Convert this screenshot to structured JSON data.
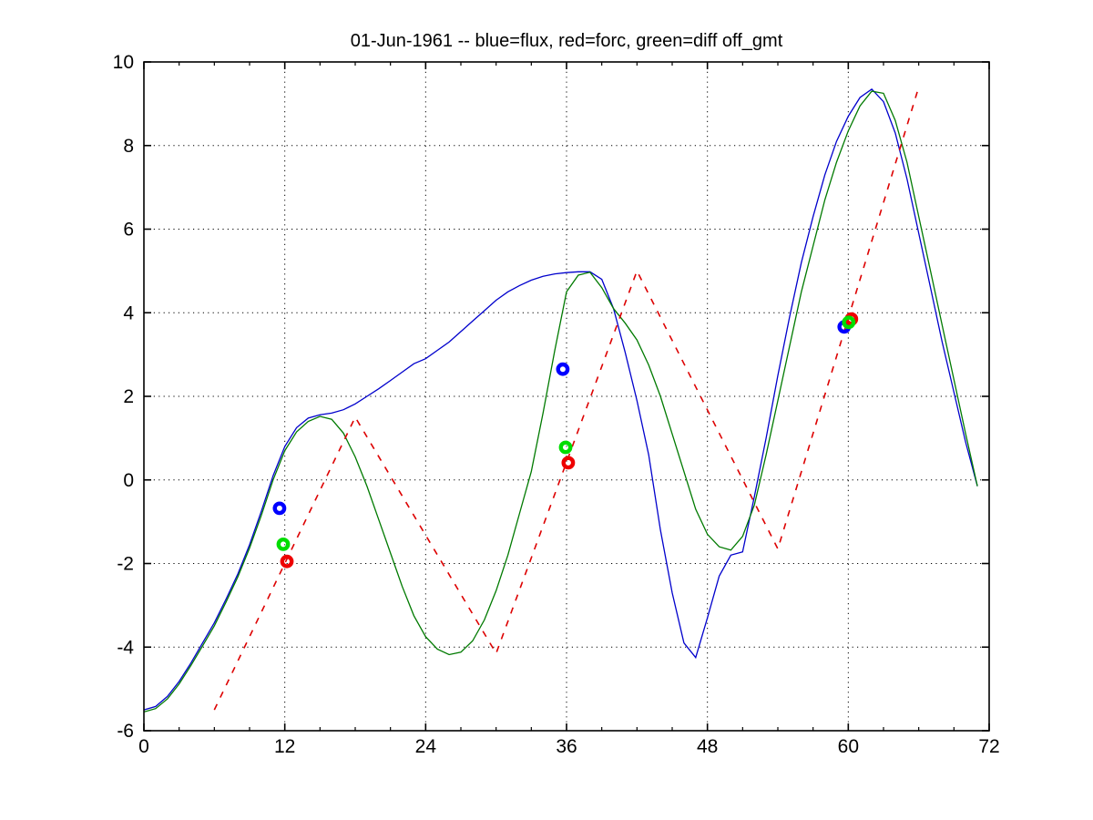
{
  "chart_data": {
    "type": "line",
    "title": "01-Jun-1961 -- blue=flux, red=forc, green=diff off_gmt",
    "xlabel": "",
    "ylabel": "",
    "xlim": [
      0,
      72
    ],
    "ylim": [
      -6,
      10
    ],
    "xticks": [
      0,
      12,
      24,
      36,
      48,
      60,
      72
    ],
    "yticks": [
      -6,
      -4,
      -2,
      0,
      2,
      4,
      6,
      8,
      10
    ],
    "x_minor_step": 3,
    "grid": "dotted",
    "background": "#ffffff",
    "axis_color": "#000000",
    "series": [
      {
        "name": "flux",
        "color": "#0000cc",
        "style": "solid",
        "x_start": 0,
        "x_step": 1,
        "y": [
          -5.5,
          -5.42,
          -5.18,
          -4.82,
          -4.38,
          -3.9,
          -3.42,
          -2.85,
          -2.25,
          -1.55,
          -0.75,
          0.1,
          0.8,
          1.25,
          1.48,
          1.56,
          1.6,
          1.68,
          1.82,
          2.0,
          2.18,
          2.38,
          2.58,
          2.78,
          2.9,
          3.1,
          3.3,
          3.55,
          3.8,
          4.05,
          4.3,
          4.5,
          4.65,
          4.78,
          4.87,
          4.93,
          4.96,
          4.98,
          4.98,
          4.8,
          4.1,
          3.05,
          1.9,
          0.6,
          -1.2,
          -2.7,
          -3.9,
          -4.25,
          -3.3,
          -2.3,
          -1.8,
          -1.72,
          -0.4,
          1.0,
          2.5,
          3.9,
          5.2,
          6.3,
          7.3,
          8.1,
          8.7,
          9.15,
          9.35,
          9.05,
          8.3,
          7.2,
          5.9,
          4.6,
          3.3,
          2.1,
          0.9,
          -0.15
        ]
      },
      {
        "name": "diff",
        "color": "#007a00",
        "style": "solid",
        "x_start": 0,
        "x_step": 1,
        "y": [
          -5.55,
          -5.47,
          -5.24,
          -4.88,
          -4.44,
          -3.97,
          -3.49,
          -2.92,
          -2.32,
          -1.63,
          -0.85,
          0.0,
          0.7,
          1.15,
          1.4,
          1.52,
          1.45,
          1.12,
          0.55,
          -0.15,
          -0.95,
          -1.75,
          -2.55,
          -3.25,
          -3.75,
          -4.05,
          -4.18,
          -4.12,
          -3.85,
          -3.35,
          -2.65,
          -1.8,
          -0.8,
          0.2,
          1.6,
          3.1,
          4.5,
          4.9,
          4.97,
          4.6,
          4.1,
          3.75,
          3.35,
          2.75,
          2.0,
          1.1,
          0.2,
          -0.7,
          -1.3,
          -1.6,
          -1.68,
          -1.35,
          -0.6,
          0.6,
          1.9,
          3.2,
          4.5,
          5.6,
          6.7,
          7.6,
          8.35,
          8.95,
          9.3,
          9.25,
          8.6,
          7.6,
          6.3,
          5.0,
          3.7,
          2.4,
          1.1,
          -0.15
        ]
      },
      {
        "name": "forc",
        "color": "#dd0000",
        "style": "dashed",
        "x": [
          6,
          18,
          30,
          42,
          54,
          66
        ],
        "y": [
          -5.5,
          1.5,
          -4.15,
          5.0,
          -1.65,
          9.4
        ]
      }
    ],
    "markers": [
      {
        "name": "flux-markers",
        "color": "#0000ff",
        "points": [
          [
            11.55,
            -0.68
          ],
          [
            35.68,
            2.65
          ],
          [
            59.65,
            3.66
          ]
        ]
      },
      {
        "name": "forc-markers",
        "color": "#ee0000",
        "points": [
          [
            12.18,
            -1.95
          ],
          [
            36.15,
            0.41
          ],
          [
            60.27,
            3.85
          ]
        ]
      },
      {
        "name": "diff-markers",
        "color": "#00dd00",
        "points": [
          [
            11.87,
            -1.54
          ],
          [
            35.92,
            0.78
          ],
          [
            60.04,
            3.77
          ]
        ]
      }
    ]
  }
}
